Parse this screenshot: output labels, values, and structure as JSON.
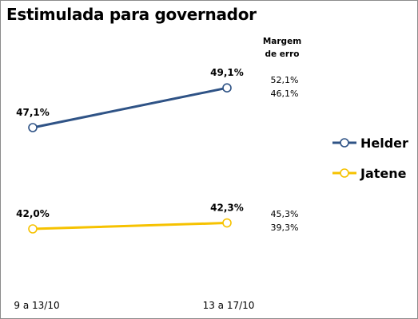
{
  "chart_data": {
    "type": "line",
    "title": "Estimulada para governador",
    "categories": [
      "9 a 13/10",
      "13 a 17/10"
    ],
    "series": [
      {
        "name": "Helder",
        "values": [
          47.1,
          49.1
        ],
        "labels": [
          "47,1%",
          "49,1%"
        ],
        "color": "#2f5386"
      },
      {
        "name": "Jatene",
        "values": [
          42.0,
          42.3
        ],
        "labels": [
          "42,0%",
          "42,3%"
        ],
        "color": "#f6c200"
      }
    ],
    "margin_header": [
      "Margem",
      "de erro"
    ],
    "margins": [
      {
        "series": "Helder",
        "upper": "52,1%",
        "lower": "46,1%"
      },
      {
        "series": "Jatene",
        "upper": "45,3%",
        "lower": "39,3%"
      }
    ],
    "legend_position": "right"
  }
}
